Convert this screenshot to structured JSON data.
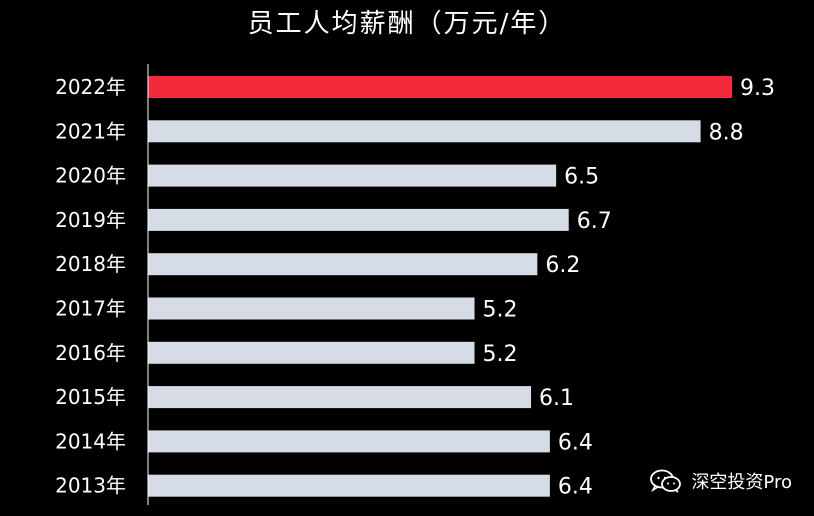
{
  "chart_data": {
    "type": "bar",
    "orientation": "horizontal",
    "title": "员工人均薪酬（万元/年）",
    "categories": [
      "2022年",
      "2021年",
      "2020年",
      "2019年",
      "2018年",
      "2017年",
      "2016年",
      "2015年",
      "2014年",
      "2013年"
    ],
    "values": [
      9.3,
      8.8,
      6.5,
      6.7,
      6.2,
      5.2,
      5.2,
      6.1,
      6.4,
      6.4
    ],
    "value_labels": [
      "9.3",
      "8.8",
      "6.5",
      "6.7",
      "6.2",
      "5.2",
      "5.2",
      "6.1",
      "6.4",
      "6.4"
    ],
    "xlim": [
      0,
      9.3
    ],
    "grid": false,
    "colors": {
      "highlight": "#F2293A",
      "bar": "#D6DCE5",
      "text": "#FFFFFF",
      "axis": "#FFFFFF",
      "background": "#000000"
    },
    "highlight_category": "2022年"
  },
  "watermark": {
    "text": "深空投资Pro",
    "icon": "wechat-icon"
  }
}
